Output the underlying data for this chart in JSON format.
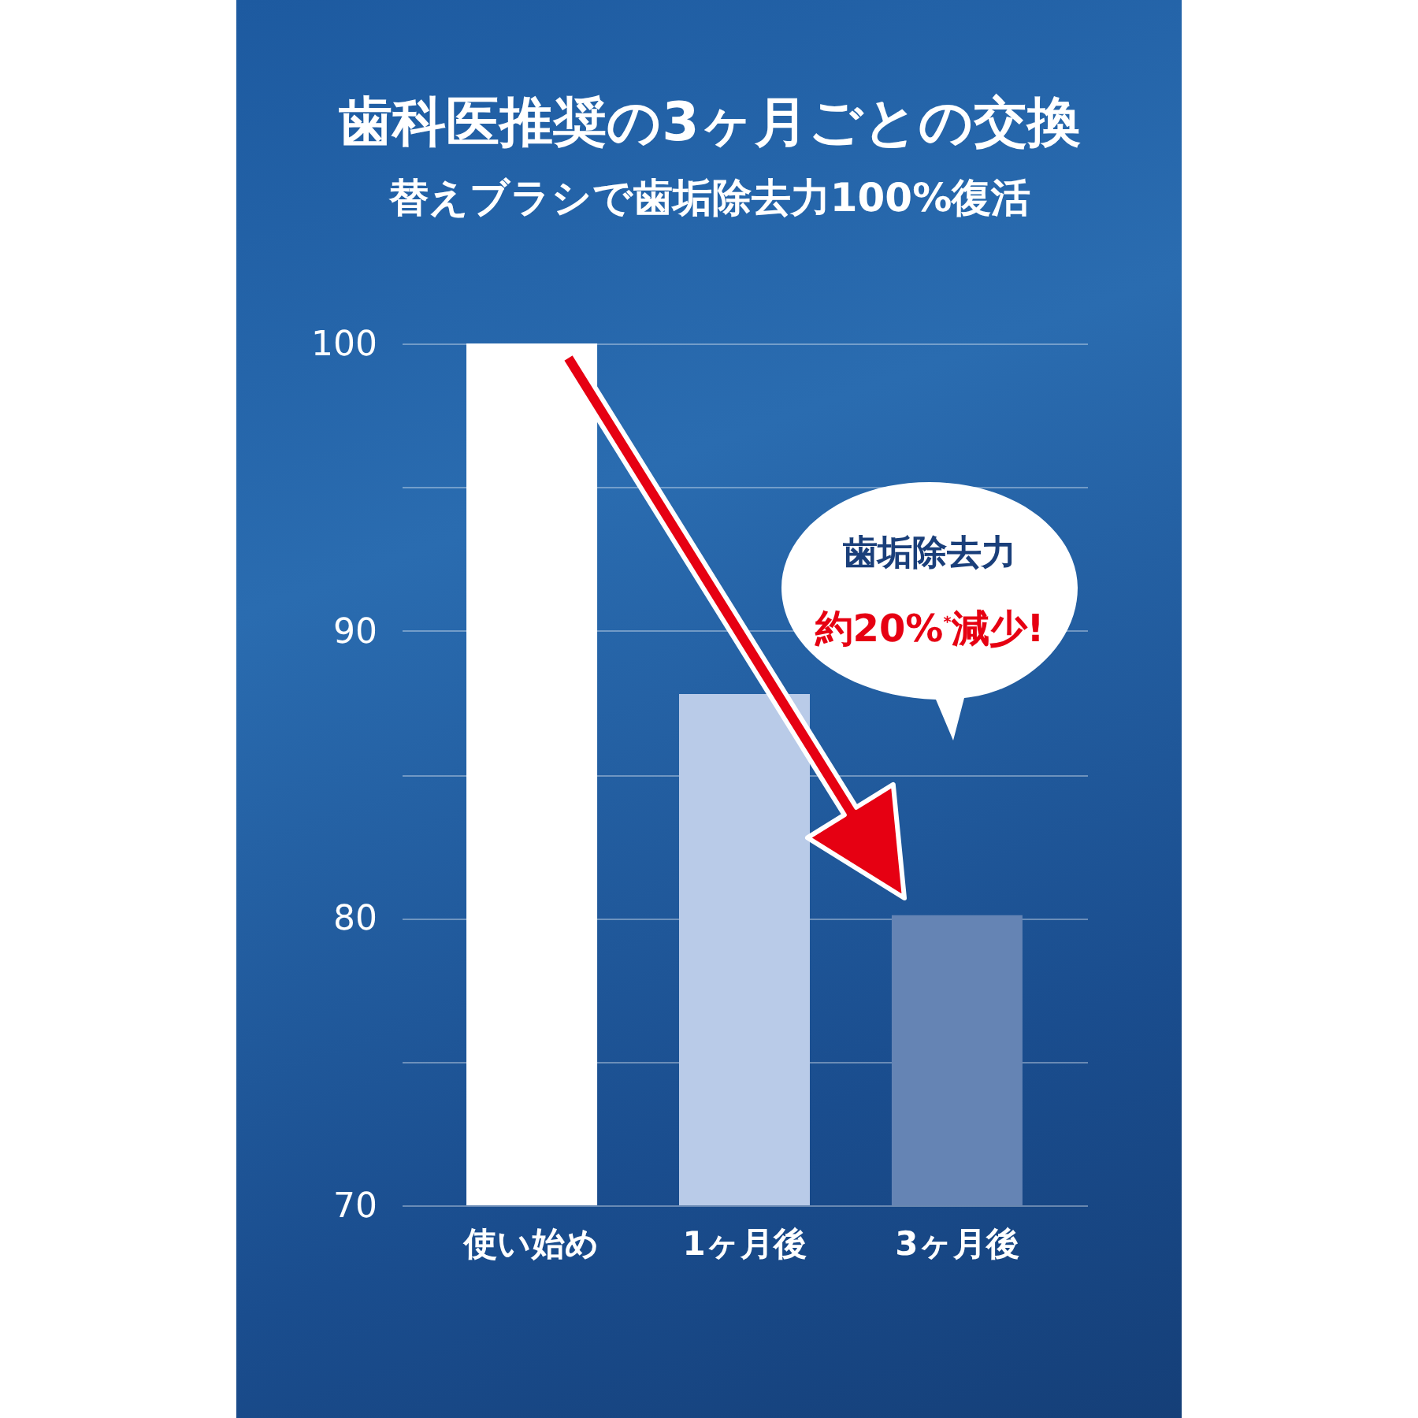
{
  "chart_data": {
    "type": "bar",
    "title": "歯科医推奨の3ヶ月ごとの交換",
    "subtitle": "替えブラシで歯垢除去力100%復活",
    "categories": [
      "使い始め",
      "1ヶ月後",
      "3ヶ月後"
    ],
    "values": [
      100,
      87.8,
      80.1
    ],
    "colors": [
      "#ffffff",
      "#b9cbe8",
      "#6584b4"
    ],
    "ylim": [
      70,
      100
    ],
    "yticks": [
      70,
      {
        "value": 75,
        "label": null
      },
      80,
      {
        "value": 85,
        "label": null
      },
      90,
      {
        "value": 95,
        "label": null
      },
      100
    ],
    "grid": "y",
    "annotations": [
      "歯垢除去力",
      "約20%$^{*}$減少!"
    ]
  }
}
